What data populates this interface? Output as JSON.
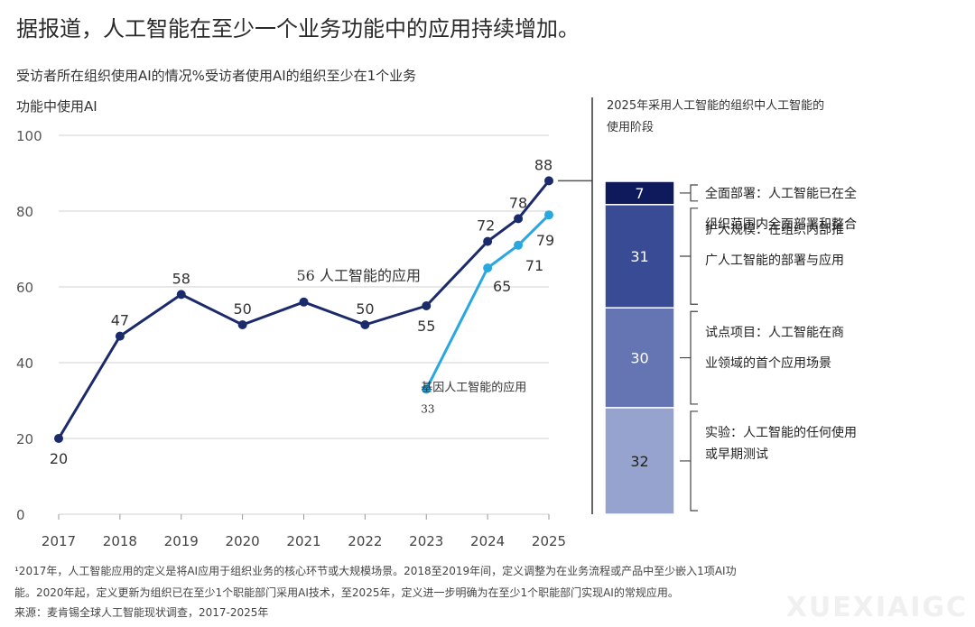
{
  "title": "据报道，人工智能在至少一个业务功能中的应用持续增加。",
  "subtitle_line1": "受访者所在组织使用AI的情况%受访者使用AI的组织至少在1个业务",
  "subtitle_line2": "功能中使用AI",
  "right_title_line1": "2025年采用人工智能的组织中人工智能的",
  "right_title_line2": "使用阶段",
  "footnote_line1": "¹2017年，人工智能应用的定义是将AI应用于组织业务的核心环节或大规模场景。2018至2019年间，定义调整为在业务流程或产品中至少嵌入1项AI功",
  "footnote_line2": "能。2020年起，定义更新为组织已在至少1个职能部门采用AI技术，至2025年，定义进一步明确为在至少1个职能部门实现AI的常规应用。",
  "source": "来源：麦肯锡全球人工智能现状调查，2017-2025年",
  "watermark": "XUEXIAIGC",
  "colors": {
    "series1": "#1b2a6b",
    "series2": "#29a8e0",
    "grid": "#d0d0d0"
  },
  "chart_data": [
    {
      "type": "line",
      "x": [
        "2017",
        "2018",
        "2019",
        "2020",
        "2021",
        "2022",
        "2023",
        "2024",
        "2025"
      ],
      "ylim": [
        0,
        100
      ],
      "yticks": [
        0,
        20,
        40,
        60,
        80,
        100
      ],
      "grid": true,
      "series": [
        {
          "name": "人工智能的应用",
          "label_text": "56 人工智能的应用",
          "color": "#1b2a6b",
          "points": [
            {
              "x": "2017",
              "y": 20
            },
            {
              "x": "2018",
              "y": 47
            },
            {
              "x": "2019",
              "y": 58
            },
            {
              "x": "2020",
              "y": 50
            },
            {
              "x": "2021",
              "y": 56
            },
            {
              "x": "2022",
              "y": 50
            },
            {
              "x": "2023",
              "y": 55
            },
            {
              "x": "2024",
              "y": 72
            },
            {
              "x": "2024.5",
              "y": 78
            },
            {
              "x": "2025",
              "y": 88
            }
          ]
        },
        {
          "name": "基因人工智能的应用",
          "color": "#29a8e0",
          "points": [
            {
              "x": "2023",
              "y": 33
            },
            {
              "x": "2024",
              "y": 65
            },
            {
              "x": "2024.5",
              "y": 71
            },
            {
              "x": "2025",
              "y": 79
            }
          ]
        }
      ]
    },
    {
      "type": "bar",
      "stacked": true,
      "categories": [
        "2025"
      ],
      "unit": "%",
      "segments": [
        {
          "value": 7,
          "color": "#0e1a5c",
          "label_line1": "全面部署：人工智能已在全",
          "label_line2": "组织范围内全面部署和整合"
        },
        {
          "value": 31,
          "color": "#3a4b96",
          "label_line1": "扩大规模：在组织内部推",
          "label_line2": "广人工智能的部署与应用"
        },
        {
          "value": 30,
          "color": "#6574b3",
          "label_line1": "试点项目：人工智能在商",
          "label_line2": "业领域的首个应用场景"
        },
        {
          "value": 32,
          "color": "#96a3cf",
          "label_line1": "实验：人工智能的任何使用",
          "label_line2": "或早期测试"
        }
      ]
    }
  ]
}
